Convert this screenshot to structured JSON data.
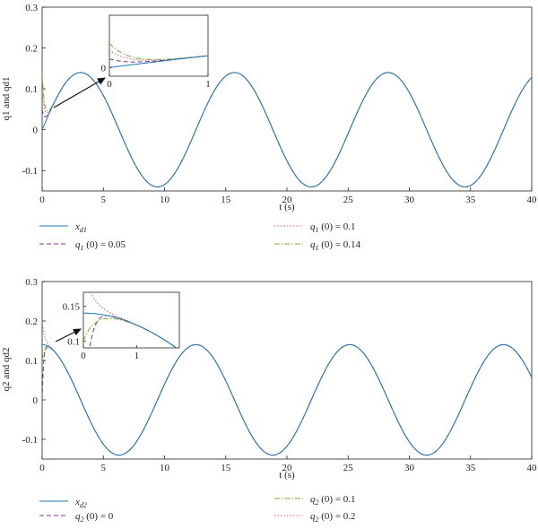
{
  "chart_data": [
    {
      "type": "line",
      "title": "",
      "xlabel": "t (s)",
      "ylabel": "q1 and qd1",
      "xlim": [
        0,
        40
      ],
      "ylim": [
        -0.15,
        0.3
      ],
      "xticks": [
        "0",
        "5",
        "10",
        "15",
        "20",
        "25",
        "30",
        "35",
        "40"
      ],
      "yticks": [
        "-0.1",
        "0",
        "0.1",
        "0.2",
        "0.3"
      ],
      "grid": false,
      "reference": {
        "amplitude": 0.14,
        "period": 12.566,
        "form": "0.14 sin(t/2)"
      },
      "series": [
        {
          "var": "x",
          "sub": "d1",
          "init": "",
          "color": "#1f77b4",
          "style": "solid",
          "initial_value": 0
        },
        {
          "var": "q",
          "sub": "1",
          "init": " (0) = 0.05",
          "color": "#7e2f8e",
          "style": "dashed",
          "initial_value": 0.05
        },
        {
          "var": "q",
          "sub": "1",
          "init": " (0) = 0.1",
          "color": "#e6557a",
          "style": "dotted",
          "initial_value": 0.1
        },
        {
          "var": "q",
          "sub": "1",
          "init": " (0) = 0.14",
          "color": "#77ac30",
          "style": "dashdot",
          "initial_value": 0.14
        }
      ],
      "inset": {
        "xlim": [
          0,
          1
        ],
        "ylim": [
          -0.05,
          0.3
        ],
        "xticks": [
          "0",
          "1"
        ],
        "yticks": [
          "0"
        ]
      }
    },
    {
      "type": "line",
      "title": "",
      "xlabel": "t (s)",
      "ylabel": "q2 and qd2",
      "xlim": [
        0,
        40
      ],
      "ylim": [
        -0.15,
        0.3
      ],
      "xticks": [
        "0",
        "5",
        "10",
        "15",
        "20",
        "25",
        "30",
        "35",
        "40"
      ],
      "yticks": [
        "-0.1",
        "0",
        "0.1",
        "0.2",
        "0.3"
      ],
      "grid": false,
      "reference": {
        "amplitude": 0.14,
        "period": 12.566,
        "form": "0.14 cos(t/2)"
      },
      "series": [
        {
          "var": "x",
          "sub": "d2",
          "init": "",
          "color": "#1f77b4",
          "style": "solid",
          "initial_value": 0.14
        },
        {
          "var": "q",
          "sub": "2",
          "init": " (0) = 0",
          "color": "#7e2f8e",
          "style": "dashed",
          "initial_value": 0
        },
        {
          "var": "q",
          "sub": "2",
          "init": " (0) = 0.1",
          "color": "#77ac30",
          "style": "dashdot",
          "initial_value": 0.1
        },
        {
          "var": "q",
          "sub": "2",
          "init": " (0) = 0.2",
          "color": "#e6557a",
          "style": "dotted",
          "initial_value": 0.2
        }
      ],
      "inset": {
        "xlim": [
          0,
          1.8
        ],
        "ylim": [
          0.09,
          0.17
        ],
        "xticks": [
          "0",
          "1"
        ],
        "yticks": [
          "0.1",
          "0.15"
        ]
      }
    }
  ]
}
